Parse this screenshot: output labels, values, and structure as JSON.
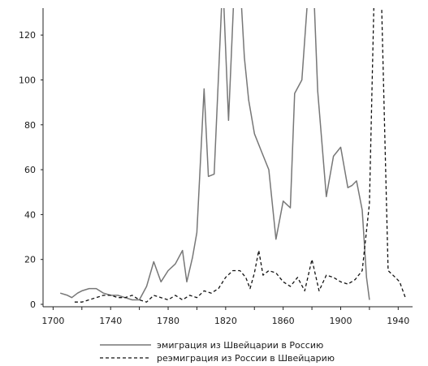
{
  "chart_data": {
    "type": "line",
    "title": "",
    "xlabel": "",
    "ylabel": "",
    "xlim": [
      1693,
      1950
    ],
    "ylim": [
      0,
      132
    ],
    "x_ticks": [
      1700,
      1740,
      1780,
      1820,
      1860,
      1900,
      1940
    ],
    "x_minor_ticks": [
      1720,
      1760,
      1800,
      1840,
      1880,
      1920
    ],
    "y_ticks": [
      0,
      20,
      40,
      60,
      80,
      100,
      120
    ],
    "grid": false,
    "legend_position": "bottom",
    "series": [
      {
        "name": "эмиграция из Швейцарии в Россию",
        "style": "solid",
        "color": "#777777",
        "x": [
          1705,
          1710,
          1713,
          1717,
          1720,
          1725,
          1730,
          1735,
          1740,
          1745,
          1750,
          1755,
          1760,
          1765,
          1770,
          1775,
          1780,
          1785,
          1790,
          1793,
          1797,
          1800,
          1805,
          1808,
          1812,
          1818,
          1822,
          1826,
          1830,
          1833,
          1836,
          1840,
          1845,
          1850,
          1855,
          1860,
          1865,
          1868,
          1873,
          1878,
          1881,
          1884,
          1890,
          1895,
          1900,
          1905,
          1908,
          1911,
          1915,
          1918,
          1920
        ],
        "y": [
          5,
          4,
          3,
          5,
          6,
          7,
          7,
          5,
          4,
          4,
          3,
          2,
          2,
          8,
          19,
          10,
          15,
          18,
          24,
          10,
          21,
          32,
          96,
          57,
          58,
          145,
          82,
          142,
          145,
          110,
          91,
          76,
          68,
          60,
          29,
          46,
          43,
          94,
          100,
          145,
          145,
          95,
          48,
          66,
          70,
          52,
          53,
          55,
          42,
          12,
          2
        ]
      },
      {
        "name": "реэмиграция из России в Швейцарию",
        "style": "dashed",
        "color": "#111111",
        "x": [
          1715,
          1720,
          1725,
          1730,
          1735,
          1740,
          1745,
          1750,
          1755,
          1760,
          1765,
          1770,
          1775,
          1780,
          1785,
          1790,
          1795,
          1800,
          1805,
          1810,
          1815,
          1820,
          1825,
          1830,
          1834,
          1837,
          1840,
          1843,
          1846,
          1850,
          1855,
          1860,
          1865,
          1870,
          1875,
          1880,
          1885,
          1890,
          1895,
          1900,
          1905,
          1910,
          1915,
          1920,
          1924,
          1928,
          1933,
          1938,
          1941,
          1945
        ],
        "y": [
          1,
          1,
          2,
          3,
          4,
          4,
          3,
          3,
          4,
          2,
          1,
          4,
          3,
          2,
          4,
          2,
          4,
          3,
          6,
          5,
          7,
          12,
          15,
          15,
          12,
          7,
          14,
          24,
          13,
          15,
          14,
          10,
          8,
          12,
          6,
          20,
          6,
          13,
          12,
          10,
          9,
          11,
          15,
          45,
          160,
          145,
          15,
          12,
          10,
          3
        ]
      }
    ]
  }
}
